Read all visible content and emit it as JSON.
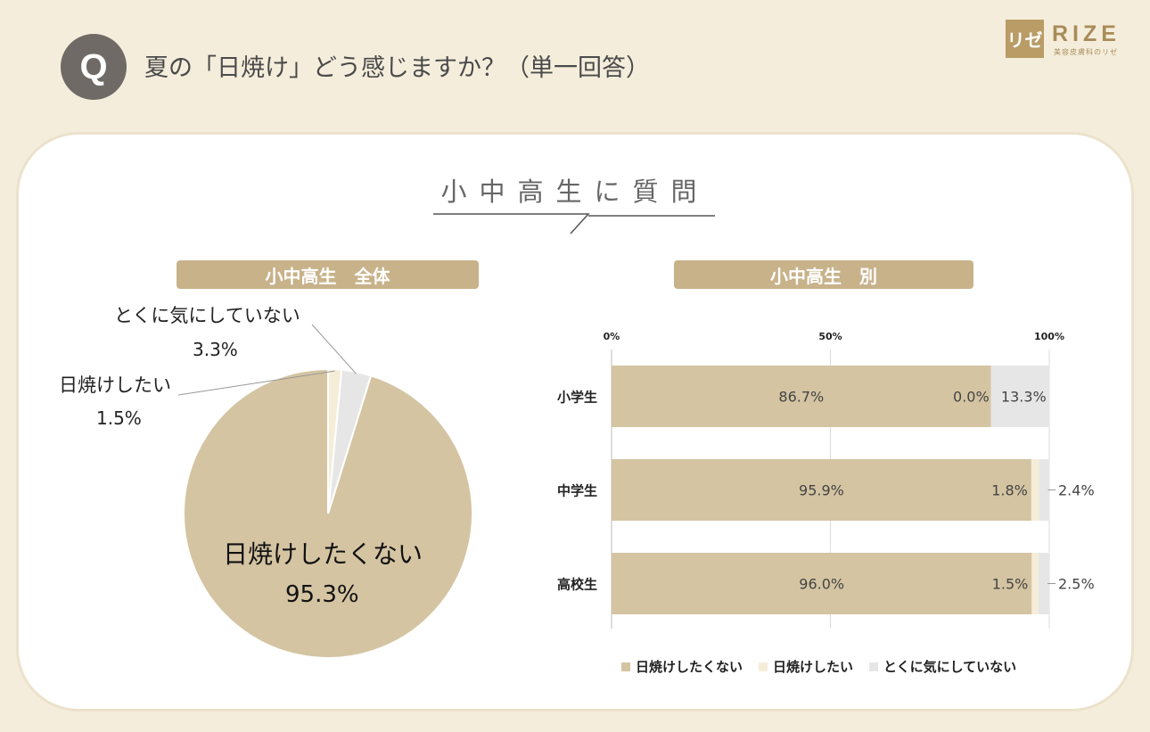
{
  "header": {
    "badge": "Q",
    "question": "夏の「日焼け」どう感じますか？（単一回答）"
  },
  "logo": {
    "mark": "リゼ",
    "word": "RIZE",
    "sub": "美容皮膚科のリゼ"
  },
  "panel": {
    "title": "小中高生に質問"
  },
  "sections": {
    "overall": "小中高生　全体",
    "by_group": "小中高生　別"
  },
  "colors": {
    "no_tan": "#d4c4a2",
    "want_tan": "#f5edd8",
    "dont_care": "#e6e6e6",
    "accent": "#c8b28a"
  },
  "chart_data": [
    {
      "type": "pie",
      "slices": [
        {
          "label": "日焼けしたくない",
          "value": 95.3,
          "value_label": "95.3%"
        },
        {
          "label": "日焼けしたい",
          "value": 1.5,
          "value_label": "1.5%"
        },
        {
          "label": "とくに気にしていない",
          "value": 3.3,
          "value_label": "3.3%"
        }
      ]
    },
    {
      "type": "bar",
      "orientation": "horizontal",
      "stacked": true,
      "categories": [
        "小学生",
        "中学生",
        "高校生"
      ],
      "series": [
        {
          "name": "日焼けしたくない",
          "values": [
            86.7,
            95.9,
            96.0
          ],
          "labels": [
            "86.7%",
            "95.9%",
            "96.0%"
          ]
        },
        {
          "name": "日焼けしたい",
          "values": [
            0.0,
            1.8,
            1.5
          ],
          "labels": [
            "0.0%",
            "1.8%",
            "1.5%"
          ]
        },
        {
          "name": "とくに気にしていない",
          "values": [
            13.3,
            2.4,
            2.5
          ],
          "labels": [
            "13.3%",
            "2.4%",
            "2.5%"
          ]
        }
      ],
      "xlim": [
        0,
        100
      ],
      "xticks": [
        "0%",
        "50%",
        "100%"
      ],
      "legend": "bottom"
    }
  ]
}
